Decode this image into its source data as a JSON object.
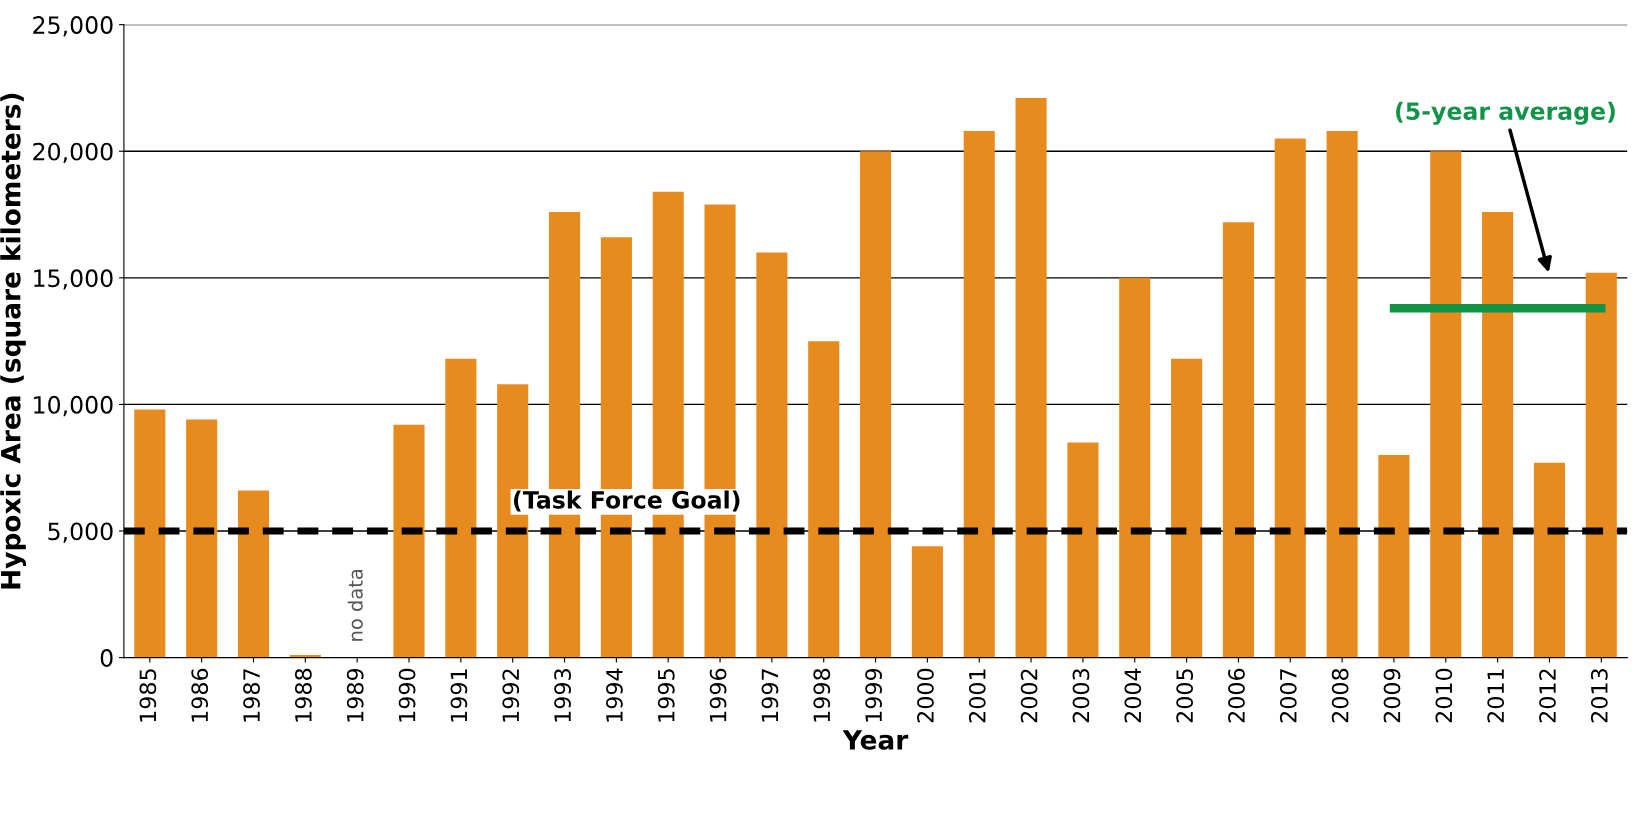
{
  "chart_data": {
    "type": "bar",
    "xlabel": "Year",
    "ylabel": "Hypoxic Area (square kilometers)",
    "categories": [
      "1985",
      "1986",
      "1987",
      "1988",
      "1989",
      "1990",
      "1991",
      "1992",
      "1993",
      "1994",
      "1995",
      "1996",
      "1997",
      "1998",
      "1999",
      "2000",
      "2001",
      "2002",
      "2003",
      "2004",
      "2005",
      "2006",
      "2007",
      "2008",
      "2009",
      "2010",
      "2011",
      "2012",
      "2013"
    ],
    "series": [
      {
        "color": "#e88b1f",
        "values": [
          9800,
          9400,
          6600,
          100,
          null,
          9200,
          11800,
          10800,
          17600,
          16600,
          18400,
          17900,
          16000,
          12500,
          20000,
          4400,
          20800,
          22100,
          8500,
          15000,
          11800,
          17200,
          20500,
          20800,
          8000,
          20000,
          17600,
          7700,
          15200
        ]
      },
      {
        "type": "line",
        "name": "(5-year average)",
        "color": "#119447",
        "values": [
          null,
          null,
          null,
          null,
          null,
          null,
          null,
          null,
          null,
          null,
          null,
          null,
          null,
          null,
          null,
          null,
          null,
          null,
          null,
          null,
          null,
          null,
          null,
          null,
          13800,
          13800,
          13800,
          13800,
          13800
        ]
      }
    ],
    "ylim": [
      0,
      25000
    ],
    "yticks": [
      {
        "value": 0,
        "label": "0"
      },
      {
        "value": 5000,
        "label": "5,000"
      },
      {
        "value": 10000,
        "label": "10,000"
      },
      {
        "value": 15000,
        "label": "15,000"
      },
      {
        "value": 20000,
        "label": "20,000"
      },
      {
        "value": 25000,
        "label": "25,000"
      }
    ],
    "ref_lines": [
      {
        "axis": "y",
        "value": 5000,
        "label": "(Task Force Goal)",
        "color": "#000000",
        "line_style": "dashed"
      }
    ],
    "annotations": [
      "no data"
    ],
    "grid": "y",
    "legend": false,
    "marker": "none"
  }
}
